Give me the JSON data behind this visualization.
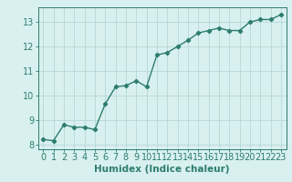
{
  "x": [
    0,
    1,
    2,
    3,
    4,
    5,
    6,
    7,
    8,
    9,
    10,
    11,
    12,
    13,
    14,
    15,
    16,
    17,
    18,
    19,
    20,
    21,
    22,
    23
  ],
  "y": [
    8.2,
    8.15,
    8.8,
    8.7,
    8.7,
    8.6,
    9.65,
    10.35,
    10.4,
    10.6,
    10.35,
    11.65,
    11.75,
    12.0,
    12.25,
    12.55,
    12.65,
    12.75,
    12.65,
    12.65,
    13.0,
    13.1,
    13.1,
    13.3
  ],
  "line_color": "#2d7d6e",
  "marker": "D",
  "marker_size": 2.2,
  "background_color": "#d8f0ef",
  "grid_color": "#b5d9d6",
  "axis_color": "#2d7d6e",
  "xlabel": "Humidex (Indice chaleur)",
  "xlim": [
    -0.5,
    23.5
  ],
  "ylim": [
    7.8,
    13.6
  ],
  "yticks": [
    8,
    9,
    10,
    11,
    12,
    13
  ],
  "xticks": [
    0,
    1,
    2,
    3,
    4,
    5,
    6,
    7,
    8,
    9,
    10,
    11,
    12,
    13,
    14,
    15,
    16,
    17,
    18,
    19,
    20,
    21,
    22,
    23
  ],
  "xlabel_fontsize": 7.5,
  "tick_fontsize": 7.0,
  "line_width": 1.0
}
